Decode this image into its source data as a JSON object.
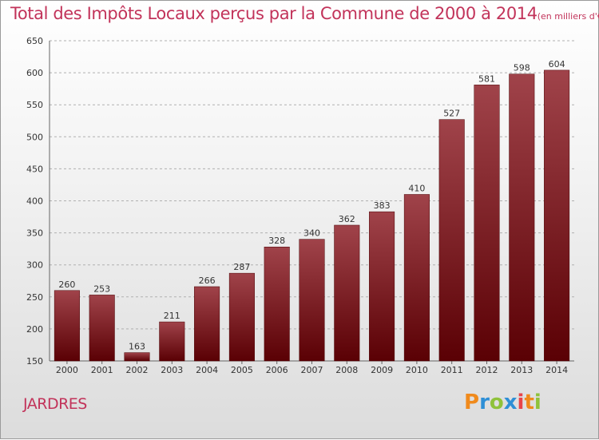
{
  "title": "Total des Impôts Locaux perçus par la Commune de 2000 à 2014",
  "unit_note": "(en milliers d'€)",
  "commune": "JARDRES",
  "logo_text": "Proxiti",
  "colors": {
    "title": "#c2335a",
    "bar_top": "#a0434a",
    "bar_bottom": "#5a0004",
    "grid": "#b0b0b0"
  },
  "chart_data": {
    "type": "bar",
    "title": "Total des Impôts Locaux perçus par la Commune de 2000 à 2014",
    "categories": [
      "2000",
      "2001",
      "2002",
      "2003",
      "2004",
      "2005",
      "2006",
      "2007",
      "2008",
      "2009",
      "2010",
      "2011",
      "2012",
      "2013",
      "2014"
    ],
    "values": [
      260,
      253,
      163,
      211,
      266,
      287,
      328,
      340,
      362,
      383,
      410,
      527,
      581,
      598,
      604
    ],
    "ylim": [
      150,
      650
    ],
    "yticks": [
      150,
      200,
      250,
      300,
      350,
      400,
      450,
      500,
      550,
      600,
      650
    ],
    "grid": true,
    "grid_style": "dashed horizontal",
    "data_labels": true
  }
}
